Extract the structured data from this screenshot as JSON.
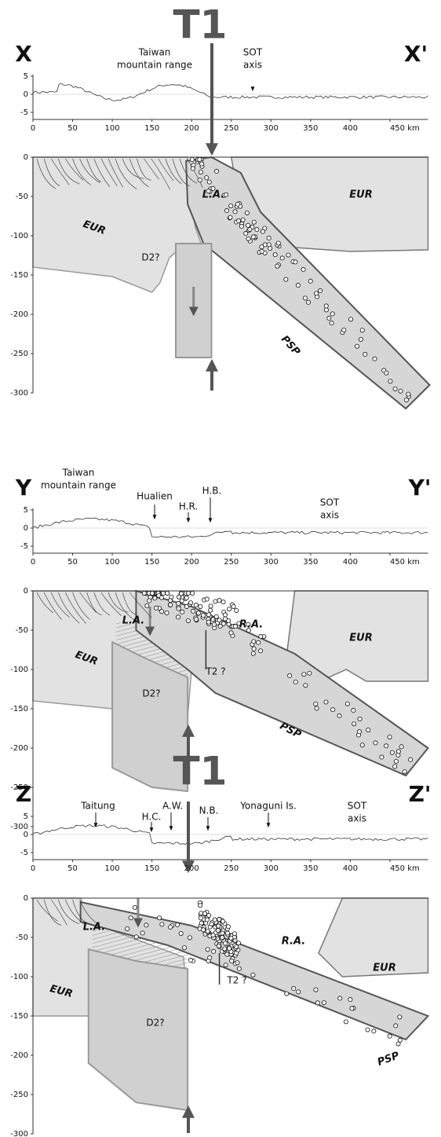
{
  "figure": {
    "distance_ticks": [
      "0",
      "50",
      "100",
      "150",
      "200",
      "250",
      "300",
      "350",
      "400",
      "450 km"
    ],
    "elevation_ticks": [
      "5",
      "0",
      "-5"
    ],
    "depth_ticks": [
      "0",
      "-50",
      "-100",
      "-150",
      "-200",
      "-250",
      "-300"
    ],
    "panels": [
      {
        "start": "X",
        "end": "X'",
        "arrow_label": "T1",
        "profile_labels": [
          [
            "Taiwan",
            "mountain range"
          ],
          [
            "SOT",
            "axis"
          ]
        ],
        "section_labels": [
          "L.A.",
          "EUR",
          "EUR",
          "D2?",
          "PSP"
        ]
      },
      {
        "start": "Y",
        "end": "Y'",
        "profile_labels": [
          [
            "Taiwan",
            "mountain range"
          ],
          [
            "Hualien"
          ],
          [
            "H.R."
          ],
          [
            "H.B."
          ],
          [
            "SOT",
            "axis"
          ]
        ],
        "section_labels": [
          "L.A.",
          "R.A.",
          "EUR",
          "EUR",
          "T2 ?",
          "D2?",
          "PSP"
        ]
      },
      {
        "start": "Z",
        "end": "Z'",
        "arrow_label": "T1",
        "profile_labels": [
          [
            "Taitung"
          ],
          [
            "H.C."
          ],
          [
            "A.W."
          ],
          [
            "N.B."
          ],
          [
            "Yonaguni Is."
          ],
          [
            "SOT",
            "axis"
          ]
        ],
        "section_labels": [
          "L.A.",
          "R.A.",
          "EUR",
          "EUR",
          "T2 ?",
          "D2?",
          "PSP"
        ]
      }
    ]
  }
}
